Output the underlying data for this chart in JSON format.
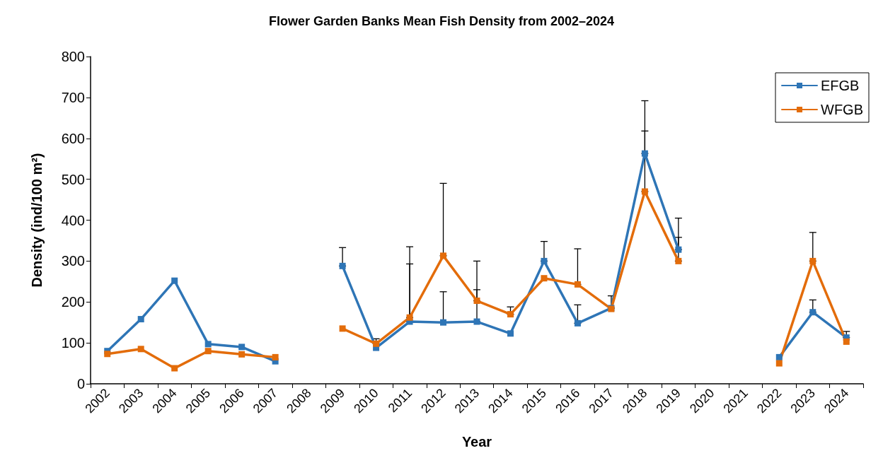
{
  "chart_data": {
    "type": "line",
    "title": "Flower Garden Banks Mean Fish Density from 2002–2024",
    "xlabel": "Year",
    "ylabel": "Density (ind/100 m²)",
    "categories": [
      "2002",
      "2003",
      "2004",
      "2005",
      "2006",
      "2007",
      "2008",
      "2009",
      "2010",
      "2011",
      "2012",
      "2013",
      "2014",
      "2015",
      "2016",
      "2017",
      "2018",
      "2019",
      "2020",
      "2021",
      "2022",
      "2023",
      "2024"
    ],
    "series": [
      {
        "name": "EFGB",
        "color": "#2e75b6",
        "values": [
          80,
          158,
          252,
          97,
          90,
          55,
          null,
          288,
          88,
          152,
          150,
          152,
          123,
          300,
          148,
          185,
          563,
          328,
          null,
          null,
          65,
          175,
          113
        ],
        "errors": [
          null,
          null,
          null,
          null,
          null,
          null,
          null,
          [
            288,
            333
          ],
          null,
          [
            152,
            293
          ],
          [
            150,
            225
          ],
          [
            152,
            230
          ],
          null,
          [
            300,
            348
          ],
          [
            148,
            193
          ],
          [
            185,
            215
          ],
          [
            563,
            692
          ],
          [
            328,
            405
          ],
          null,
          null,
          null,
          [
            175,
            205
          ],
          [
            113,
            128
          ]
        ]
      },
      {
        "name": "WFGB",
        "color": "#e36c0a",
        "values": [
          73,
          85,
          38,
          80,
          72,
          65,
          null,
          135,
          98,
          162,
          313,
          203,
          170,
          258,
          243,
          183,
          470,
          300,
          null,
          null,
          50,
          300,
          103
        ],
        "errors": [
          null,
          null,
          null,
          null,
          null,
          null,
          null,
          null,
          [
            98,
            110
          ],
          [
            162,
            335
          ],
          [
            313,
            490
          ],
          [
            203,
            300
          ],
          [
            170,
            188
          ],
          null,
          [
            243,
            330
          ],
          null,
          [
            470,
            618
          ],
          [
            300,
            358
          ],
          null,
          null,
          null,
          [
            300,
            370
          ],
          null
        ]
      }
    ],
    "ylim": [
      0,
      800
    ],
    "yticks": [
      0,
      100,
      200,
      300,
      400,
      500,
      600,
      700,
      800
    ],
    "grid": false,
    "legend": "top right",
    "marker": "square",
    "line_style": "solid"
  }
}
